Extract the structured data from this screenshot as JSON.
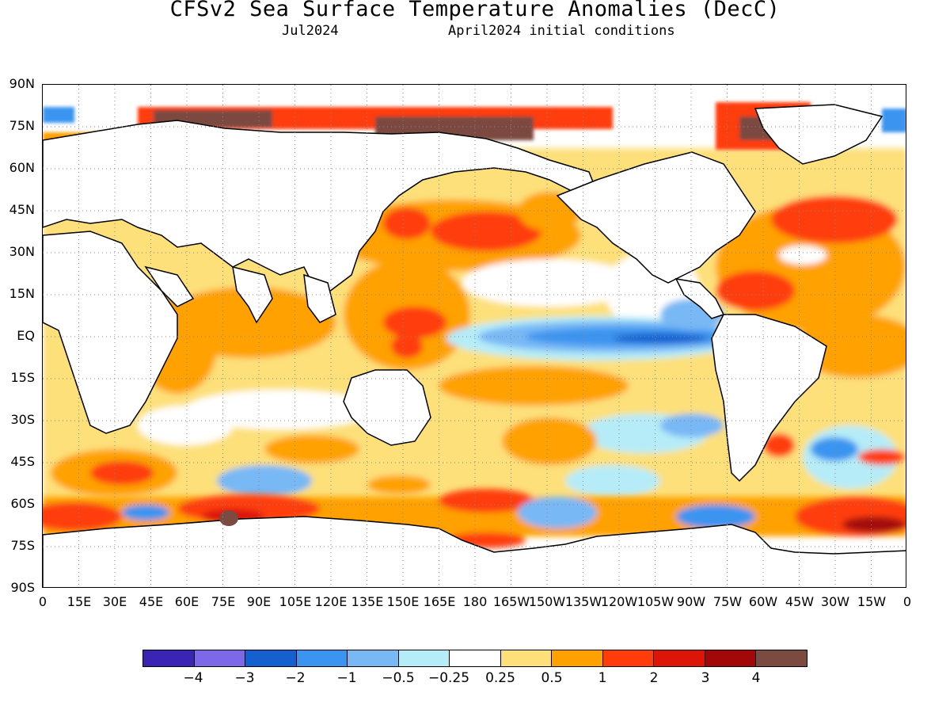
{
  "header": {
    "title": "CFSv2 Sea Surface Temperature Anomalies (DecC)",
    "valid_month": "Jul2024",
    "initial_conditions": "April2024 initial conditions"
  },
  "map": {
    "lat_labels": [
      "90N",
      "75N",
      "60N",
      "45N",
      "30N",
      "15N",
      "EQ",
      "15S",
      "30S",
      "45S",
      "60S",
      "75S",
      "90S"
    ],
    "lon_labels": [
      "0",
      "15E",
      "30E",
      "45E",
      "60E",
      "75E",
      "90E",
      "105E",
      "120E",
      "135E",
      "150E",
      "165E",
      "180",
      "165W",
      "150W",
      "135W",
      "120W",
      "105W",
      "90W",
      "75W",
      "60W",
      "45W",
      "30W",
      "15W",
      "0"
    ],
    "land_color": "#ffffff",
    "grid": "dotted"
  },
  "colorbar": {
    "colors": [
      "#3a24b4",
      "#7d68e8",
      "#1560cf",
      "#3a94f0",
      "#78b8f5",
      "#b5ecf8",
      "#ffffff",
      "#fde07a",
      "#ffa100",
      "#ff3c0a",
      "#dc1508",
      "#a20808",
      "#7b4a40"
    ],
    "labels": [
      "−4",
      "−3",
      "−2",
      "−1",
      "−0.5",
      "−0.25",
      "0.25",
      "0.5",
      "1",
      "2",
      "3",
      "4"
    ]
  }
}
